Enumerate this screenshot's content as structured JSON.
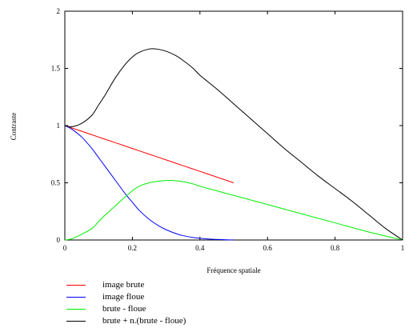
{
  "chart_data": {
    "type": "line",
    "xlabel": "Fréquence spatiale",
    "ylabel": "Contraste",
    "xlim": [
      0,
      1
    ],
    "ylim": [
      0,
      2
    ],
    "xticks": [
      "0",
      "0.2",
      "0.4",
      "0.6",
      "0.8",
      "1"
    ],
    "yticks": [
      "0",
      "0.5",
      "1",
      "1.5",
      "2"
    ],
    "grid": false,
    "legend_position": "bottom-left",
    "series": [
      {
        "name": "image brute",
        "color": "#ff0000",
        "x": [
          0,
          0.05,
          0.1,
          0.15,
          0.2,
          0.25,
          0.3,
          0.35,
          0.4,
          0.45,
          0.5
        ],
        "y": [
          1,
          0.95,
          0.9,
          0.85,
          0.8,
          0.75,
          0.7,
          0.65,
          0.6,
          0.55,
          0.5
        ]
      },
      {
        "name": "image floue",
        "color": "#0000ff",
        "x": [
          0,
          0.02,
          0.05,
          0.08,
          0.1,
          0.12,
          0.15,
          0.18,
          0.2,
          0.22,
          0.25,
          0.28,
          0.3,
          0.33,
          0.35,
          0.38,
          0.4,
          0.43,
          0.45,
          0.48,
          0.5
        ],
        "y": [
          1,
          0.97,
          0.9,
          0.8,
          0.72,
          0.64,
          0.52,
          0.4,
          0.33,
          0.26,
          0.18,
          0.12,
          0.09,
          0.055,
          0.038,
          0.022,
          0.015,
          0.008,
          0.005,
          0.002,
          0.001
        ]
      },
      {
        "name": "brute - floue",
        "color": "#00ee00",
        "x": [
          0,
          0.02,
          0.05,
          0.08,
          0.1,
          0.12,
          0.15,
          0.18,
          0.2,
          0.22,
          0.25,
          0.28,
          0.3,
          0.32,
          0.35,
          0.38,
          0.4,
          0.45,
          0.5,
          0.6,
          0.7,
          0.8,
          0.9,
          1.0
        ],
        "y": [
          0,
          0.01,
          0.05,
          0.1,
          0.16,
          0.22,
          0.3,
          0.38,
          0.43,
          0.47,
          0.5,
          0.515,
          0.52,
          0.52,
          0.51,
          0.49,
          0.47,
          0.43,
          0.39,
          0.31,
          0.23,
          0.15,
          0.07,
          0
        ]
      },
      {
        "name": "brute + n.(brute - floue)",
        "color": "#000000",
        "x": [
          0,
          0.02,
          0.05,
          0.08,
          0.1,
          0.12,
          0.15,
          0.18,
          0.2,
          0.22,
          0.25,
          0.27,
          0.3,
          0.33,
          0.35,
          0.38,
          0.4,
          0.45,
          0.5,
          0.55,
          0.6,
          0.65,
          0.7,
          0.75,
          0.8,
          0.85,
          0.9,
          0.95,
          1.0
        ],
        "y": [
          1,
          0.99,
          1.02,
          1.09,
          1.18,
          1.27,
          1.42,
          1.54,
          1.6,
          1.64,
          1.67,
          1.67,
          1.65,
          1.61,
          1.57,
          1.5,
          1.44,
          1.32,
          1.19,
          1.06,
          0.93,
          0.8,
          0.68,
          0.56,
          0.45,
          0.34,
          0.22,
          0.1,
          0
        ]
      }
    ]
  }
}
